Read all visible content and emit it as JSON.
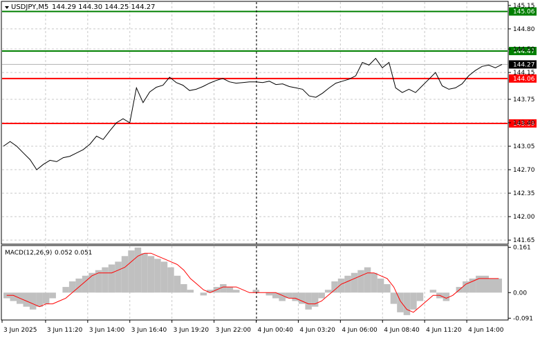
{
  "window": {
    "symbol_timeframe": "USDJPY,M5",
    "ohlc": "144.29 144.30 144.25 144.27"
  },
  "indicator": {
    "title": "MACD(12,26,9)",
    "values": "0.052 0.051",
    "axis_ticks": [
      "0.161",
      "0.00",
      "-0.091"
    ]
  },
  "price_axis": {
    "ticks": [
      "145.15",
      "144.80",
      "144.50",
      "144.15",
      "143.75",
      "143.40",
      "143.05",
      "142.70",
      "142.35",
      "142.00",
      "141.65"
    ]
  },
  "levels": [
    {
      "value": "145.06",
      "color": "#008000"
    },
    {
      "value": "144.47",
      "color": "#008000"
    },
    {
      "value": "144.06",
      "color": "#ff0000"
    },
    {
      "value": "143.39",
      "color": "#ff0000"
    }
  ],
  "current_price": "144.27",
  "time_axis": {
    "labels": [
      "3 Jun 2025",
      "3 Jun 11:20",
      "3 Jun 14:00",
      "3 Jun 16:40",
      "3 Jun 19:20",
      "3 Jun 22:00",
      "4 Jun 00:40",
      "4 Jun 03:20",
      "4 Jun 06:00",
      "4 Jun 08:40",
      "4 Jun 11:20",
      "4 Jun 14:00"
    ]
  },
  "chart_data": {
    "type": "line",
    "ylim": [
      141.6,
      145.2
    ],
    "x_categories": [
      "3 Jun 2025",
      "3 Jun 11:20",
      "3 Jun 14:00",
      "3 Jun 16:40",
      "3 Jun 19:20",
      "3 Jun 22:00",
      "4 Jun 00:40",
      "4 Jun 03:20",
      "4 Jun 06:00",
      "4 Jun 08:40",
      "4 Jun 11:20",
      "4 Jun 14:00"
    ],
    "price_series": [
      143.05,
      143.12,
      143.05,
      142.95,
      142.85,
      142.7,
      142.78,
      142.84,
      142.82,
      142.88,
      142.9,
      142.95,
      143.0,
      143.08,
      143.2,
      143.15,
      143.28,
      143.4,
      143.46,
      143.4,
      143.92,
      143.7,
      143.86,
      143.93,
      143.96,
      144.08,
      144.0,
      143.96,
      143.88,
      143.9,
      143.94,
      143.99,
      144.03,
      144.06,
      144.01,
      143.99,
      144.0,
      144.01,
      144.01,
      144.0,
      144.02,
      143.97,
      143.98,
      143.94,
      143.92,
      143.9,
      143.8,
      143.78,
      143.84,
      143.92,
      143.99,
      144.02,
      144.05,
      144.1,
      144.3,
      144.26,
      144.36,
      144.22,
      144.3,
      143.92,
      143.85,
      143.9,
      143.85,
      143.95,
      144.05,
      144.15,
      143.95,
      143.9,
      143.92,
      143.98,
      144.1,
      144.18,
      144.24,
      144.26,
      144.22,
      144.27
    ],
    "macd": {
      "histogram": [
        -0.02,
        -0.03,
        -0.04,
        -0.05,
        -0.06,
        -0.05,
        -0.04,
        -0.02,
        0.0,
        0.02,
        0.04,
        0.05,
        0.06,
        0.07,
        0.08,
        0.09,
        0.1,
        0.11,
        0.13,
        0.15,
        0.16,
        0.14,
        0.13,
        0.12,
        0.11,
        0.09,
        0.06,
        0.03,
        0.01,
        0.0,
        -0.01,
        0.01,
        0.02,
        0.03,
        0.02,
        0.01,
        0.0,
        0.0,
        0.01,
        0.0,
        -0.01,
        -0.02,
        -0.03,
        -0.02,
        -0.03,
        -0.04,
        -0.06,
        -0.05,
        -0.02,
        0.01,
        0.04,
        0.05,
        0.06,
        0.07,
        0.08,
        0.09,
        0.07,
        0.05,
        0.03,
        -0.04,
        -0.07,
        -0.08,
        -0.06,
        -0.03,
        0.0,
        0.01,
        -0.02,
        -0.03,
        0.0,
        0.02,
        0.04,
        0.05,
        0.06,
        0.06,
        0.05,
        0.05
      ],
      "signal": [
        -0.01,
        -0.01,
        -0.02,
        -0.03,
        -0.04,
        -0.05,
        -0.04,
        -0.04,
        -0.03,
        -0.02,
        0.0,
        0.02,
        0.04,
        0.06,
        0.07,
        0.07,
        0.07,
        0.08,
        0.09,
        0.11,
        0.13,
        0.14,
        0.14,
        0.13,
        0.12,
        0.11,
        0.1,
        0.08,
        0.05,
        0.03,
        0.01,
        0.0,
        0.01,
        0.02,
        0.02,
        0.02,
        0.01,
        0.0,
        0.0,
        0.0,
        0.0,
        0.0,
        -0.01,
        -0.02,
        -0.02,
        -0.03,
        -0.04,
        -0.04,
        -0.03,
        -0.01,
        0.01,
        0.03,
        0.04,
        0.05,
        0.06,
        0.07,
        0.07,
        0.06,
        0.05,
        0.02,
        -0.03,
        -0.06,
        -0.07,
        -0.05,
        -0.03,
        -0.01,
        -0.01,
        -0.02,
        -0.01,
        0.01,
        0.03,
        0.04,
        0.05,
        0.05,
        0.05,
        0.05
      ],
      "ylim": [
        -0.095,
        0.165
      ]
    }
  },
  "colors": {
    "price_line": "#000000",
    "macd_hist": "#c0c0c0",
    "macd_signal": "#ff0000",
    "grid": "#c8c8c8",
    "current_price_label": "#000000"
  }
}
